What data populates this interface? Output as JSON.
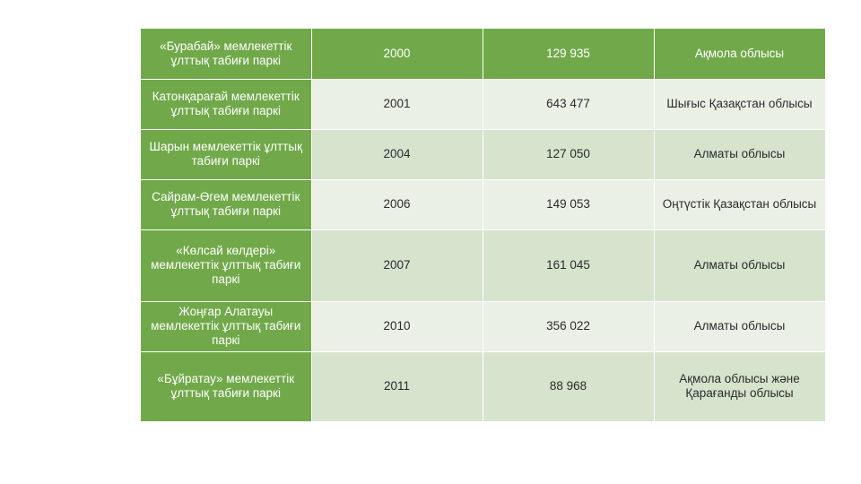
{
  "rows": [
    {
      "name": "«Бурабай» мемлекеттік ұлттық табиғи паркі",
      "year": "2000",
      "area": "129 935",
      "region": "Ақмола облысы"
    },
    {
      "name": "Катонқарағай мемлекеттік ұлттық табиғи паркі",
      "year": "2001",
      "area": "643 477",
      "region": "Шығыс Қазақстан облысы"
    },
    {
      "name": "Шарын мемлекеттік ұлттық табиғи паркі",
      "year": "2004",
      "area": "127 050",
      "region": "Алматы облысы"
    },
    {
      "name": "Сайрам-Өгем мемлекеттік ұлттық табиғи паркі",
      "year": "2006",
      "area": "149 053",
      "region": "Оңтүстік Қазақстан облысы"
    },
    {
      "name": "«Көлсай көлдері» мемлекеттік ұлттық табиғи паркі",
      "year": "2007",
      "area": "161 045",
      "region": "Алматы облысы"
    },
    {
      "name": "Жоңғар Алатауы мемлекеттік ұлттық табиғи паркі",
      "year": "2010",
      "area": "356 022",
      "region": "Алматы облысы"
    },
    {
      "name": "«Бұйратау» мемлекеттік ұлттық табиғи паркі",
      "year": "2011",
      "area": "88 968",
      "region": "Ақмола облысы және Қарағанды облысы"
    }
  ]
}
